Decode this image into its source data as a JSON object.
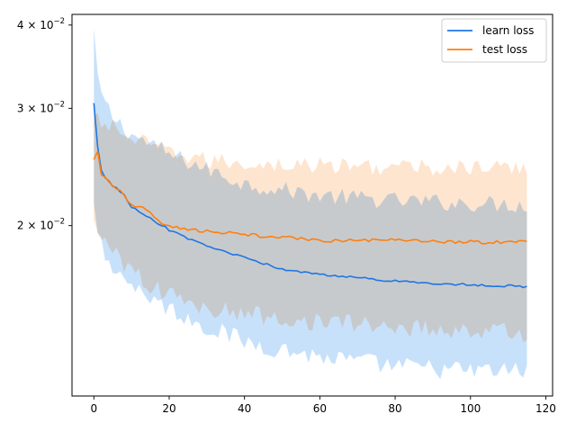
{
  "chart_data": {
    "type": "line",
    "title": "",
    "xlabel": "",
    "ylabel": "",
    "xlim": [
      -5.8,
      121.8
    ],
    "ylim": [
      0.0111,
      0.0415
    ],
    "yscale": "log",
    "grid": false,
    "legend_position": "top-right",
    "xticks": [
      0,
      20,
      40,
      60,
      80,
      100,
      120
    ],
    "xtick_labels": [
      "0",
      "20",
      "40",
      "60",
      "80",
      "100",
      "120"
    ],
    "yticks": [
      0.02,
      0.03,
      0.04
    ],
    "ytick_labels": [
      {
        "mantissa": "2",
        "base": "10",
        "exp": "−2"
      },
      {
        "mantissa": "3",
        "base": "10",
        "exp": "−2"
      },
      {
        "mantissa": "4",
        "base": "10",
        "exp": "−2"
      }
    ],
    "x_range": [
      0,
      115
    ],
    "series": [
      {
        "name": "learn loss",
        "color": "#1f77e4",
        "band_color": "#c8e1fb",
        "anchors": [
          [
            0,
            0.0306
          ],
          [
            1,
            0.0262
          ],
          [
            2,
            0.0243
          ],
          [
            3,
            0.0236
          ],
          [
            5,
            0.023
          ],
          [
            8,
            0.0222
          ],
          [
            10,
            0.0213
          ],
          [
            15,
            0.0205
          ],
          [
            20,
            0.0197
          ],
          [
            25,
            0.0191
          ],
          [
            30,
            0.0186
          ],
          [
            40,
            0.0179
          ],
          [
            50,
            0.0172
          ],
          [
            60,
            0.0169
          ],
          [
            70,
            0.0167
          ],
          [
            80,
            0.0165
          ],
          [
            90,
            0.0164
          ],
          [
            100,
            0.0163
          ],
          [
            115,
            0.0162
          ]
        ],
        "upper_anchors": [
          [
            0,
            0.0393
          ],
          [
            1,
            0.033
          ],
          [
            3,
            0.0305
          ],
          [
            5,
            0.0291
          ],
          [
            10,
            0.0274
          ],
          [
            20,
            0.0256
          ],
          [
            30,
            0.0243
          ],
          [
            40,
            0.0231
          ],
          [
            60,
            0.0222
          ],
          [
            80,
            0.0218
          ],
          [
            100,
            0.0216
          ],
          [
            115,
            0.0215
          ]
        ],
        "lower_anchors": [
          [
            0,
            0.0221
          ],
          [
            1,
            0.0193
          ],
          [
            3,
            0.0182
          ],
          [
            5,
            0.0175
          ],
          [
            10,
            0.0163
          ],
          [
            20,
            0.015
          ],
          [
            30,
            0.0141
          ],
          [
            40,
            0.0134
          ],
          [
            60,
            0.0127
          ],
          [
            80,
            0.0123
          ],
          [
            100,
            0.0121
          ],
          [
            115,
            0.0121
          ]
        ]
      },
      {
        "name": "test loss",
        "color": "#ff7f0e",
        "band_color": "#fedcc0",
        "anchors": [
          [
            0,
            0.0252
          ],
          [
            1,
            0.0258
          ],
          [
            2,
            0.0239
          ],
          [
            4,
            0.0233
          ],
          [
            7,
            0.0225
          ],
          [
            10,
            0.0215
          ],
          [
            15,
            0.021
          ],
          [
            18,
            0.0201
          ],
          [
            22,
            0.0199
          ],
          [
            30,
            0.0196
          ],
          [
            40,
            0.0194
          ],
          [
            50,
            0.0192
          ],
          [
            60,
            0.019
          ],
          [
            80,
            0.019
          ],
          [
            100,
            0.0189
          ],
          [
            115,
            0.0189
          ]
        ],
        "upper_anchors": [
          [
            0,
            0.029
          ],
          [
            2,
            0.0285
          ],
          [
            5,
            0.0282
          ],
          [
            10,
            0.027
          ],
          [
            20,
            0.0258
          ],
          [
            30,
            0.025
          ],
          [
            50,
            0.0247
          ],
          [
            80,
            0.0245
          ],
          [
            100,
            0.0244
          ],
          [
            115,
            0.0244
          ]
        ],
        "lower_anchors": [
          [
            0,
            0.0205
          ],
          [
            2,
            0.0195
          ],
          [
            5,
            0.0185
          ],
          [
            10,
            0.017
          ],
          [
            20,
            0.0157
          ],
          [
            30,
            0.015
          ],
          [
            50,
            0.0145
          ],
          [
            80,
            0.0141
          ],
          [
            100,
            0.0139
          ],
          [
            115,
            0.0138
          ]
        ]
      }
    ]
  }
}
